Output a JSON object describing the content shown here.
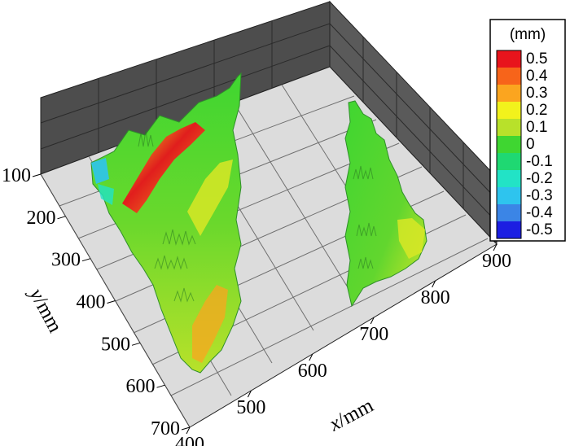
{
  "chart_data": {
    "type": "surface3d",
    "xlabel_var": "x",
    "xlabel_unit": "/mm",
    "ylabel_var": "y",
    "ylabel_unit": "/mm",
    "x_ticks": [
      "400",
      "500",
      "600",
      "700",
      "800",
      "900"
    ],
    "y_ticks": [
      "100",
      "200",
      "300",
      "400",
      "500",
      "600",
      "700"
    ],
    "x_range": [
      400,
      900
    ],
    "y_range": [
      100,
      700
    ],
    "colorbar": {
      "unit": "(mm)",
      "levels": [
        "0.5",
        "0.4",
        "0.3",
        "0.2",
        "0.1",
        "0",
        "-0.1",
        "-0.2",
        "-0.3",
        "-0.4",
        "-0.5"
      ],
      "colors": [
        "#e8141c",
        "#f7641a",
        "#fba51f",
        "#f2f21c",
        "#b8e12a",
        "#3fd631",
        "#1fd872",
        "#22e3c6",
        "#2ec4ee",
        "#3b85e6",
        "#1c1fe2"
      ]
    },
    "grid": true,
    "regions": [
      {
        "x": [
          430,
          610
        ],
        "y": [
          100,
          570
        ],
        "dominant_deviation": 0.0,
        "max_deviation": 0.5
      },
      {
        "x": [
          720,
          860
        ],
        "y": [
          110,
          470
        ],
        "dominant_deviation": 0.0,
        "max_deviation": 0.25
      }
    ]
  }
}
